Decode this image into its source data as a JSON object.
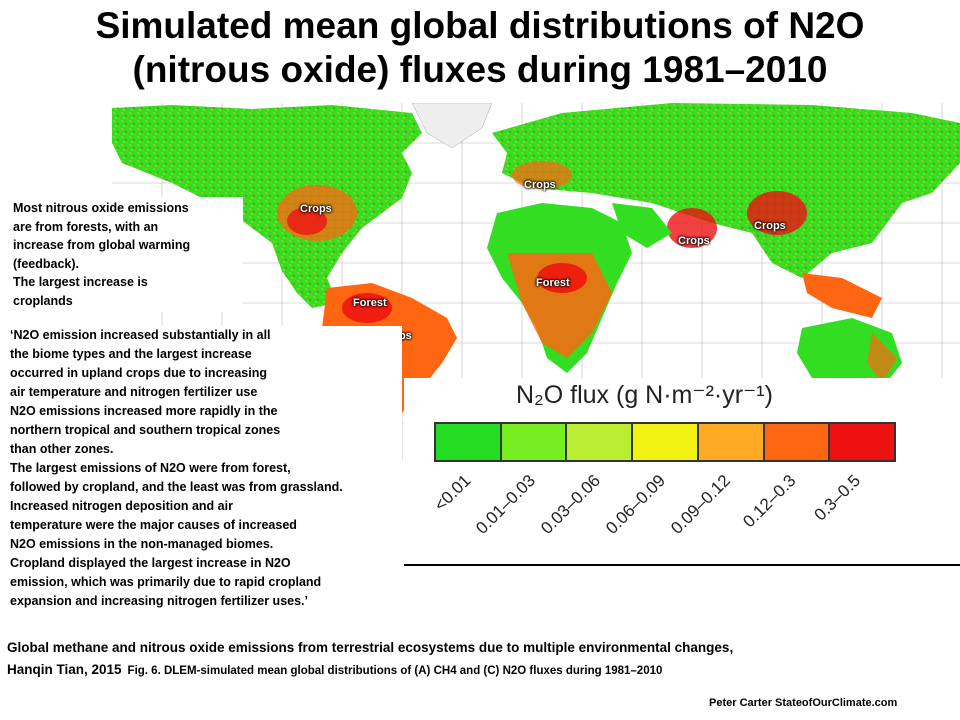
{
  "title": {
    "line1": "Simulated mean global distributions of N2O",
    "line2": "(nitrous oxide) fluxes during 1981–2010"
  },
  "map_labels": {
    "crops_north_america": "Crops",
    "crops_europe": "Crops",
    "crops_india": "Crops",
    "crops_china": "Crops",
    "forest_amazon": "Forest",
    "crops_brazil": "Crops",
    "forest_africa": "Forest"
  },
  "side_note": {
    "lines": [
      "Most nitrous oxide emissions",
      "are from forests, with an",
      "increase from global warming",
      "(feedback).",
      "The largest increase is",
      "croplands"
    ]
  },
  "quote": {
    "lines": [
      "‘N2O emission increased substantially in all",
      "the biome types and the largest increase",
      " occurred in upland crops due to increasing",
      " air temperature and nitrogen fertilizer use",
      "N2O emissions increased more rapidly in the",
      "northern tropical and southern tropical zones",
      "than other zones.",
      "The largest emissions of N2O were from forest,",
      "followed by cropland, and the least was from grassland.",
      " Increased nitrogen deposition and air",
      "temperature were the major causes of increased",
      "N2O emissions in the non-managed biomes.",
      " Cropland displayed the largest increase in N2O",
      "emission, which was primarily due to rapid cropland",
      "expansion and increasing nitrogen fertilizer uses.’"
    ]
  },
  "legend": {
    "title": "N₂O flux (g N·m⁻²·yr⁻¹)",
    "classes": [
      {
        "label": "<0.01",
        "color": "#22dd22"
      },
      {
        "label": "0.01–0.03",
        "color": "#77ee22"
      },
      {
        "label": "0.03–0.06",
        "color": "#bbee33"
      },
      {
        "label": "0.06–0.09",
        "color": "#f2f211"
      },
      {
        "label": "0.09–0.12",
        "color": "#ffaa22"
      },
      {
        "label": "0.12–0.3",
        "color": "#ff6611"
      },
      {
        "label": "0.3–0.5",
        "color": "#ee1111"
      }
    ]
  },
  "citation": {
    "line1": "Global methane and nitrous oxide emissions from terrestrial ecosystems due to multiple environmental changes,",
    "author": "Hanqin Tian, 2015",
    "figure": "Fig. 6. DLEM-simulated mean global distributions of (A) CH4 and (C) N2O fluxes during 1981–2010"
  },
  "credit": "Peter Carter StateofOurClimate.com"
}
